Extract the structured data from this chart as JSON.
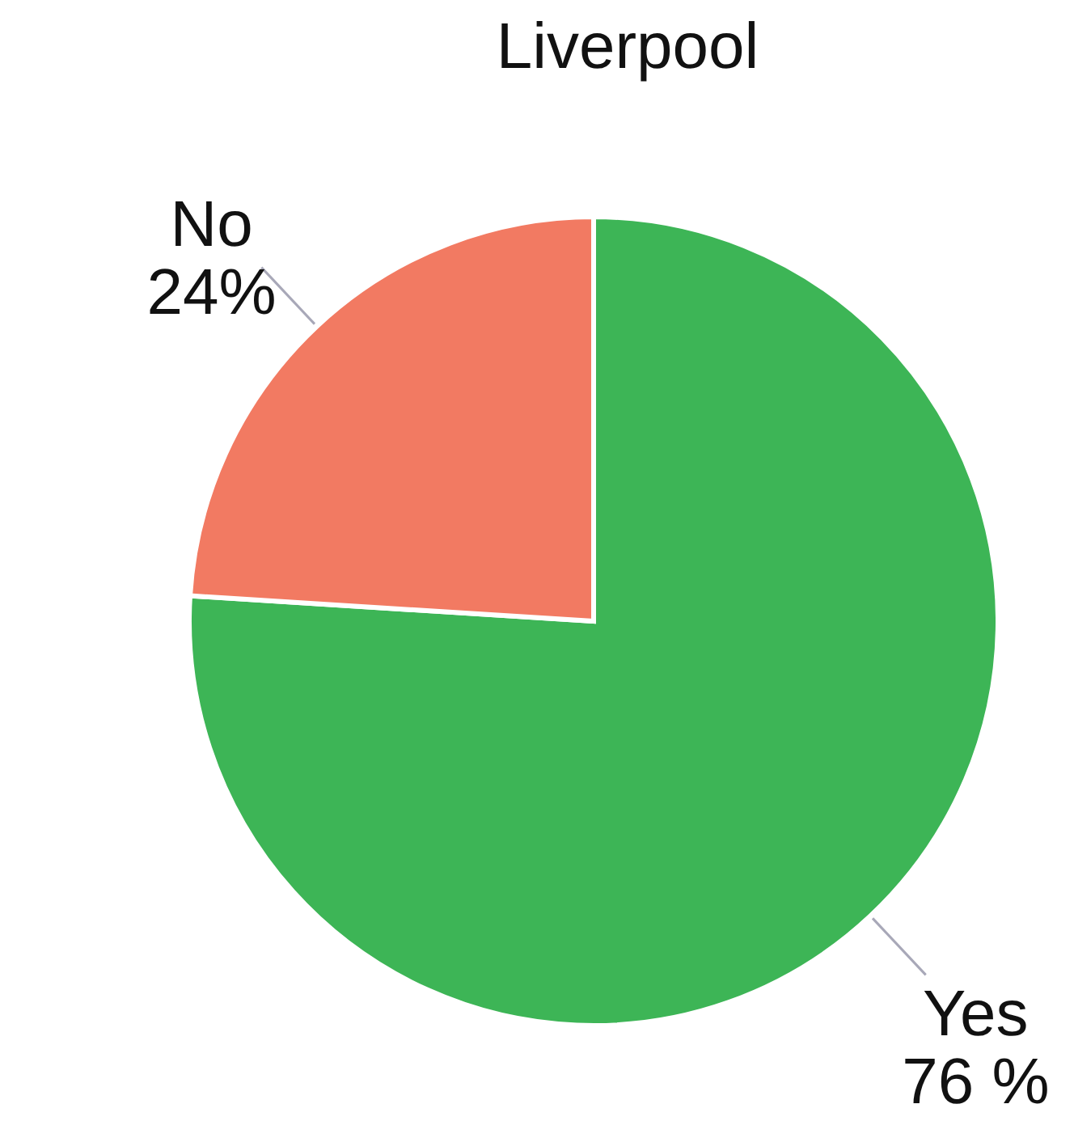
{
  "chart_data": {
    "type": "pie",
    "title": "Liverpool",
    "categories": [
      "Yes",
      "No"
    ],
    "values": [
      76,
      24
    ],
    "colors": [
      "#3db556",
      "#f27a62"
    ],
    "value_labels": [
      "76 %",
      "24%"
    ]
  }
}
